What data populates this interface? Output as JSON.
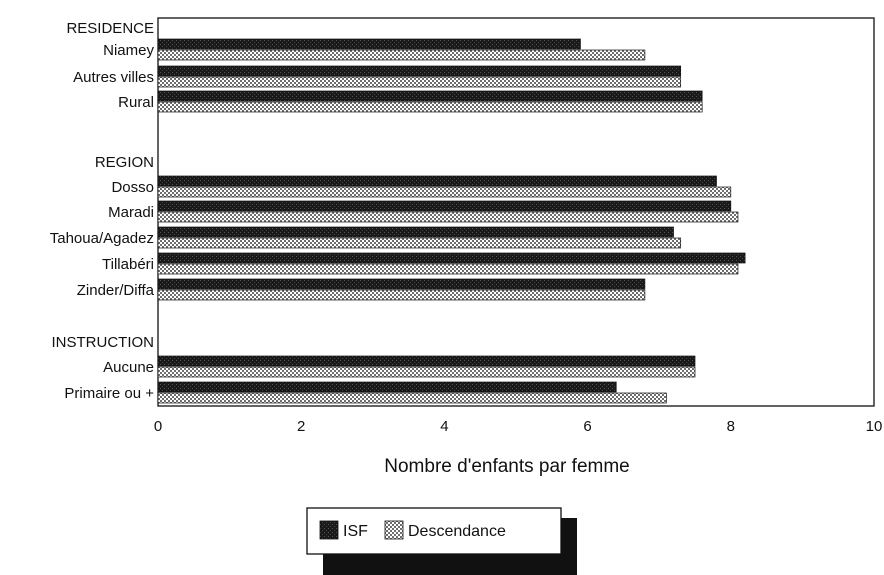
{
  "chart_data": {
    "type": "bar",
    "orientation": "horizontal",
    "xlabel": "Nombre d'enfants par femme",
    "xlim": [
      0,
      10
    ],
    "xticks": [
      0,
      2,
      4,
      6,
      8,
      10
    ],
    "grid": false,
    "legend_placement": "bottom-center",
    "groups": [
      {
        "label": "RESIDENCE",
        "categories": [
          "Niamey",
          "Autres villes",
          "Rural"
        ]
      },
      {
        "label": "REGION",
        "categories": [
          "Dosso",
          "Maradi",
          "Tahoua/Agadez",
          "Tillabéri",
          "Zinder/Diffa"
        ]
      },
      {
        "label": "INSTRUCTION",
        "categories": [
          "Aucune",
          "Primaire ou +"
        ]
      }
    ],
    "categories": [
      "Niamey",
      "Autres villes",
      "Rural",
      "Dosso",
      "Maradi",
      "Tahoua/Agadez",
      "Tillabéri",
      "Zinder/Diffa",
      "Aucune",
      "Primaire ou +"
    ],
    "series": [
      {
        "name": "ISF",
        "color": "#151515",
        "pattern": "solid-dark",
        "values": [
          5.9,
          7.3,
          7.6,
          7.8,
          8.0,
          7.2,
          8.2,
          6.8,
          7.5,
          6.4
        ]
      },
      {
        "name": "Descendance",
        "color": "#9a9a9a",
        "pattern": "checkered",
        "values": [
          6.8,
          7.3,
          7.6,
          8.0,
          8.1,
          7.3,
          8.1,
          6.8,
          7.5,
          7.1
        ]
      }
    ]
  }
}
